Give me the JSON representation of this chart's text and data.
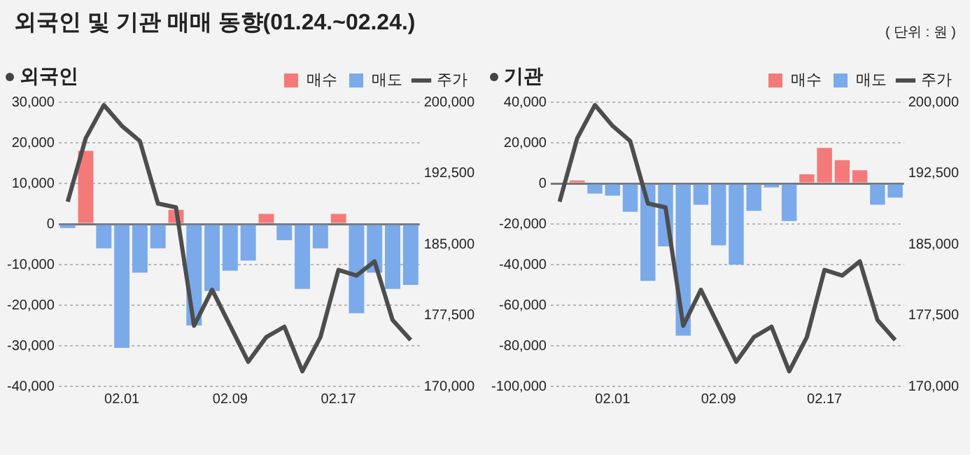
{
  "chart_data": [
    {
      "type": "bar",
      "title": "외국인 및 기관 매매 동향(01.24.~02.24.)",
      "annotations": [
        "( 단위 : 원 )"
      ],
      "subtitle": "외국인",
      "categories": [
        null,
        null,
        null,
        "02.01",
        null,
        null,
        null,
        null,
        null,
        "02.09",
        null,
        null,
        null,
        null,
        null,
        "02.17",
        null,
        null,
        null,
        null
      ],
      "stacked": true,
      "series": [
        {
          "name": "매수",
          "color": "#f47a7a",
          "values": [
            null,
            18000,
            null,
            null,
            null,
            null,
            3500,
            null,
            null,
            null,
            null,
            2500,
            null,
            null,
            null,
            2500,
            null,
            null,
            null,
            null
          ]
        },
        {
          "name": "매도",
          "color": "#7aaaea",
          "values": [
            -1000,
            null,
            -6000,
            -30500,
            -12000,
            -6000,
            null,
            -25000,
            -16500,
            -11500,
            -9000,
            null,
            -4000,
            -16000,
            -6000,
            null,
            -22000,
            -12000,
            -16000,
            -15000
          ]
        },
        {
          "name": "주가",
          "type": "line",
          "axis": "y2",
          "color": "#4d4d4d",
          "values": [
            189500,
            196200,
            199700,
            197500,
            195900,
            189300,
            188900,
            176400,
            180200,
            176400,
            172600,
            175200,
            176300,
            171600,
            175200,
            182300,
            181700,
            183200,
            177000,
            174900
          ]
        }
      ],
      "ylim": [
        -40000,
        30000
      ],
      "yticks": [
        {
          "value": -40000,
          "label": "-40,000"
        },
        {
          "value": -30000,
          "label": "-30,000"
        },
        {
          "value": -20000,
          "label": "-20,000"
        },
        {
          "value": -10000,
          "label": "-10,000"
        },
        0,
        {
          "value": 10000,
          "label": "10,000"
        },
        {
          "value": 20000,
          "label": "20,000"
        },
        {
          "value": 30000,
          "label": "30,000"
        }
      ],
      "y2lim": [
        170000,
        200000
      ],
      "y2ticks": [
        {
          "value": 170000,
          "label": "170,000"
        },
        {
          "value": 177500,
          "label": "177,500"
        },
        {
          "value": 185000,
          "label": "185,000"
        },
        {
          "value": 192500,
          "label": "192,500"
        },
        {
          "value": 200000,
          "label": "200,000"
        }
      ],
      "grid": "y",
      "legend": "top right",
      "marker": "none",
      "line_style": "solid"
    },
    {
      "type": "bar",
      "subtitle": "기관",
      "categories": [
        null,
        null,
        null,
        "02.01",
        null,
        null,
        null,
        null,
        null,
        "02.09",
        null,
        null,
        null,
        null,
        null,
        "02.17",
        null,
        null,
        null,
        null
      ],
      "stacked": true,
      "series": [
        {
          "name": "매수",
          "color": "#f47a7a",
          "values": [
            500,
            1500,
            null,
            null,
            null,
            null,
            null,
            null,
            null,
            null,
            null,
            null,
            null,
            null,
            4500,
            17500,
            11500,
            6500,
            null,
            null
          ]
        },
        {
          "name": "매도",
          "color": "#7aaaea",
          "values": [
            null,
            null,
            -5000,
            -6000,
            -14000,
            -48000,
            -31000,
            -75000,
            -10500,
            -30500,
            -40000,
            -13500,
            -2000,
            -18500,
            null,
            null,
            null,
            null,
            -10500,
            -7000
          ]
        },
        {
          "name": "주가",
          "type": "line",
          "axis": "y2",
          "color": "#4d4d4d",
          "values": [
            189500,
            196200,
            199700,
            197500,
            195900,
            189300,
            188900,
            176400,
            180200,
            176400,
            172600,
            175200,
            176300,
            171600,
            175200,
            182300,
            181700,
            183200,
            177000,
            174900
          ]
        }
      ],
      "ylim": [
        -100000,
        40000
      ],
      "yticks": [
        {
          "value": -100000,
          "label": "-100,000"
        },
        {
          "value": -80000,
          "label": "-80,000"
        },
        {
          "value": -60000,
          "label": "-60,000"
        },
        {
          "value": -40000,
          "label": "-40,000"
        },
        {
          "value": -20000,
          "label": "-20,000"
        },
        0,
        {
          "value": 20000,
          "label": "20,000"
        },
        {
          "value": 40000,
          "label": "40,000"
        }
      ],
      "y2lim": [
        170000,
        200000
      ],
      "y2ticks": [
        {
          "value": 170000,
          "label": "170,000"
        },
        {
          "value": 177500,
          "label": "177,500"
        },
        {
          "value": 185000,
          "label": "185,000"
        },
        {
          "value": 192500,
          "label": "192,500"
        },
        {
          "value": 200000,
          "label": "200,000"
        }
      ],
      "grid": "y",
      "legend": "top right",
      "marker": "none",
      "line_style": "solid"
    }
  ]
}
